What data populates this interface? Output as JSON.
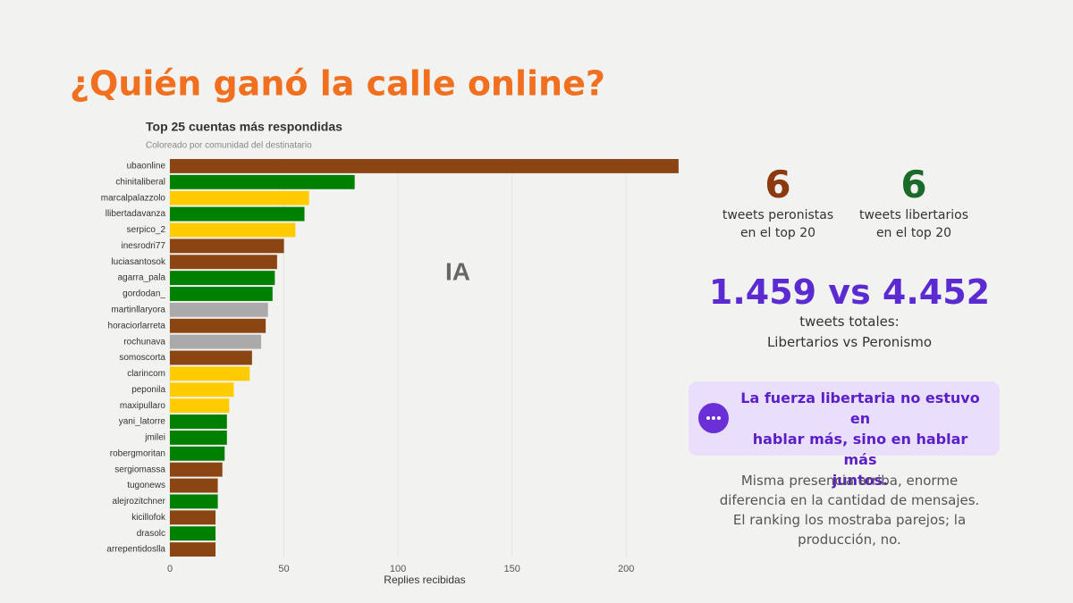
{
  "page_title": "¿Quién ganó la calle online?",
  "chart_data": {
    "type": "barh",
    "title": "Top 25 cuentas más respondidas",
    "subtitle": "Coloreado por comunidad del destinatario",
    "xlabel": "Replies recibidas",
    "categories": [
      "ubaonline",
      "chinitaliberal",
      "marcalpalazzolo",
      "llibertadavanza",
      "serpico_2",
      "inesrodri77",
      "luciasantosok",
      "agarra_pala",
      "gordodan_",
      "martinllaryora",
      "horaciorlarreta",
      "rochunava",
      "somoscorta",
      "clarincom",
      "peponila",
      "maxipullaro",
      "yani_latorre",
      "jmilei",
      "robergmoritan",
      "sergiomassa",
      "tugonews",
      "alejrozitchner",
      "kicillofok",
      "drasolc",
      "arrepentidoslla"
    ],
    "values": [
      223,
      81,
      61,
      59,
      55,
      50,
      47,
      46,
      45,
      43,
      42,
      40,
      36,
      35,
      28,
      26,
      25,
      25,
      24,
      23,
      21,
      21,
      20,
      20,
      20
    ],
    "colors": [
      "#8b4513",
      "#008000",
      "#ffcc00",
      "#008000",
      "#ffcc00",
      "#8b4513",
      "#8b4513",
      "#008000",
      "#008000",
      "#aaaaaa",
      "#8b4513",
      "#aaaaaa",
      "#8b4513",
      "#ffcc00",
      "#ffcc00",
      "#ffcc00",
      "#008000",
      "#008000",
      "#008000",
      "#8b4513",
      "#8b4513",
      "#008000",
      "#8b4513",
      "#008000",
      "#8b4513"
    ],
    "xlim": [
      0,
      225
    ],
    "xticks": [
      0,
      50,
      100,
      150,
      200
    ]
  },
  "logo": "IA",
  "stats": [
    {
      "value": "6",
      "lines": [
        "tweets peronistas",
        "en el top 20"
      ]
    },
    {
      "value": "6",
      "lines": [
        "tweets libertarios",
        "en el top 20"
      ]
    }
  ],
  "totals": {
    "value": "1.459 vs 4.452",
    "lines": [
      "tweets totales:",
      "Libertarios vs Peronismo"
    ]
  },
  "callout": [
    "La fuerza libertaria no estuvo en",
    "hablar más, sino en hablar más",
    "juntos."
  ],
  "note": [
    "Misma presencia arriba, enorme",
    "diferencia en la cantidad de mensajes.",
    "El ranking los mostraba parejos; la",
    "producción, no."
  ]
}
